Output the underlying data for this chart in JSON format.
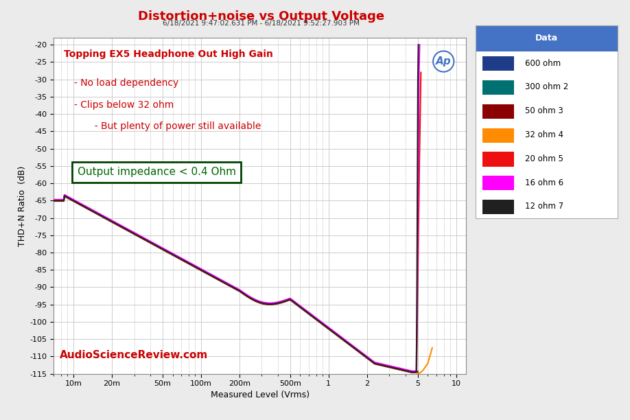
{
  "title": "Distortion+noise vs Output Voltage",
  "subtitle": "6/18/2021 9:47:02.631 PM - 6/18/2021 9:52:27.903 PM",
  "xlabel": "Measured Level (Vrms)",
  "ylabel": "THD+N Ratio  (dB)",
  "xlim": [
    0.007,
    12.0
  ],
  "ylim": [
    -115,
    -18
  ],
  "yticks": [
    -20,
    -25,
    -30,
    -35,
    -40,
    -45,
    -50,
    -55,
    -60,
    -65,
    -70,
    -75,
    -80,
    -85,
    -90,
    -95,
    -100,
    -105,
    -110,
    -115
  ],
  "xtick_vals": [
    0.01,
    0.02,
    0.05,
    0.1,
    0.2,
    0.5,
    1.0,
    2.0,
    5.0,
    10.0
  ],
  "xtick_labels": [
    "10m",
    "20m",
    "50m",
    "100m",
    "200m",
    "500m",
    "1",
    "2",
    "5",
    "10"
  ],
  "bg_color": "#ebebeb",
  "plot_bg": "#ffffff",
  "grid_color": "#cccccc",
  "title_color": "#cc0000",
  "annotation_color": "#cc0000",
  "watermark_color": "#cc0000",
  "legend_header_bg": "#4472c4",
  "legend_header_color": "#ffffff",
  "annotation_box_color": "#006600",
  "series": [
    {
      "label": "600 ohm",
      "color": "#1f3c88",
      "lw": 1.5
    },
    {
      "label": "300 ohm 2",
      "color": "#007070",
      "lw": 1.5
    },
    {
      "label": "50 ohm 3",
      "color": "#8b0000",
      "lw": 1.5
    },
    {
      "label": "32 ohm 4",
      "color": "#ff8c00",
      "lw": 1.5
    },
    {
      "label": "20 ohm 5",
      "color": "#ee1010",
      "lw": 1.5
    },
    {
      "label": "16 ohm 6",
      "color": "#ff00ff",
      "lw": 1.5
    },
    {
      "label": "12 ohm 7",
      "color": "#202020",
      "lw": 1.5
    }
  ],
  "annotation_lines": [
    "Topping EX5 Headphone Out High Gain",
    "- No load dependency",
    "- Clips below 32 ohm",
    "  - But plenty of power still available"
  ],
  "impedance_box_text": "Output impedance < 0.4 Ohm",
  "watermark": "AudioScienceReview.com"
}
